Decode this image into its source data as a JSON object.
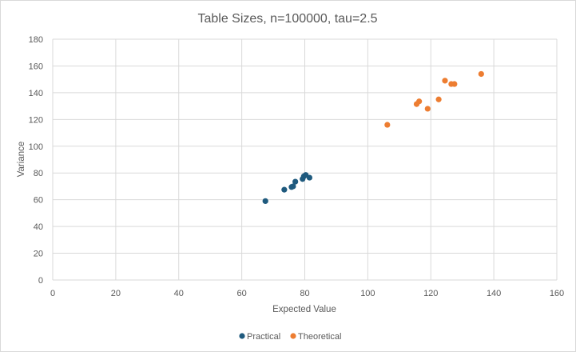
{
  "chart_data": {
    "type": "scatter",
    "title": "Table Sizes, n=100000, tau=2.5",
    "xlabel": "Expected Value",
    "ylabel": "Variance",
    "xlim": [
      0,
      160
    ],
    "ylim": [
      0,
      180
    ],
    "xticks": [
      0,
      20,
      40,
      60,
      80,
      100,
      120,
      140,
      160
    ],
    "yticks": [
      0,
      20,
      40,
      60,
      80,
      100,
      120,
      140,
      160,
      180
    ],
    "grid": true,
    "legend": "bottom",
    "series": [
      {
        "name": "Practical",
        "color": "#1f5a7e",
        "points": [
          [
            67.5,
            59
          ],
          [
            73.5,
            67.5
          ],
          [
            75.8,
            69.5
          ],
          [
            76.3,
            70
          ],
          [
            77,
            73.5
          ],
          [
            79.3,
            75.5
          ],
          [
            79.7,
            77.5
          ],
          [
            80.3,
            78.5
          ],
          [
            81.5,
            76.5
          ]
        ]
      },
      {
        "name": "Theoretical",
        "color": "#ed7d31",
        "points": [
          [
            106.2,
            116
          ],
          [
            115.5,
            131.5
          ],
          [
            116.3,
            133.5
          ],
          [
            119,
            128
          ],
          [
            122.5,
            135
          ],
          [
            124.5,
            149
          ],
          [
            126.5,
            146.5
          ],
          [
            127.5,
            146.5
          ],
          [
            136,
            154
          ]
        ]
      }
    ]
  }
}
